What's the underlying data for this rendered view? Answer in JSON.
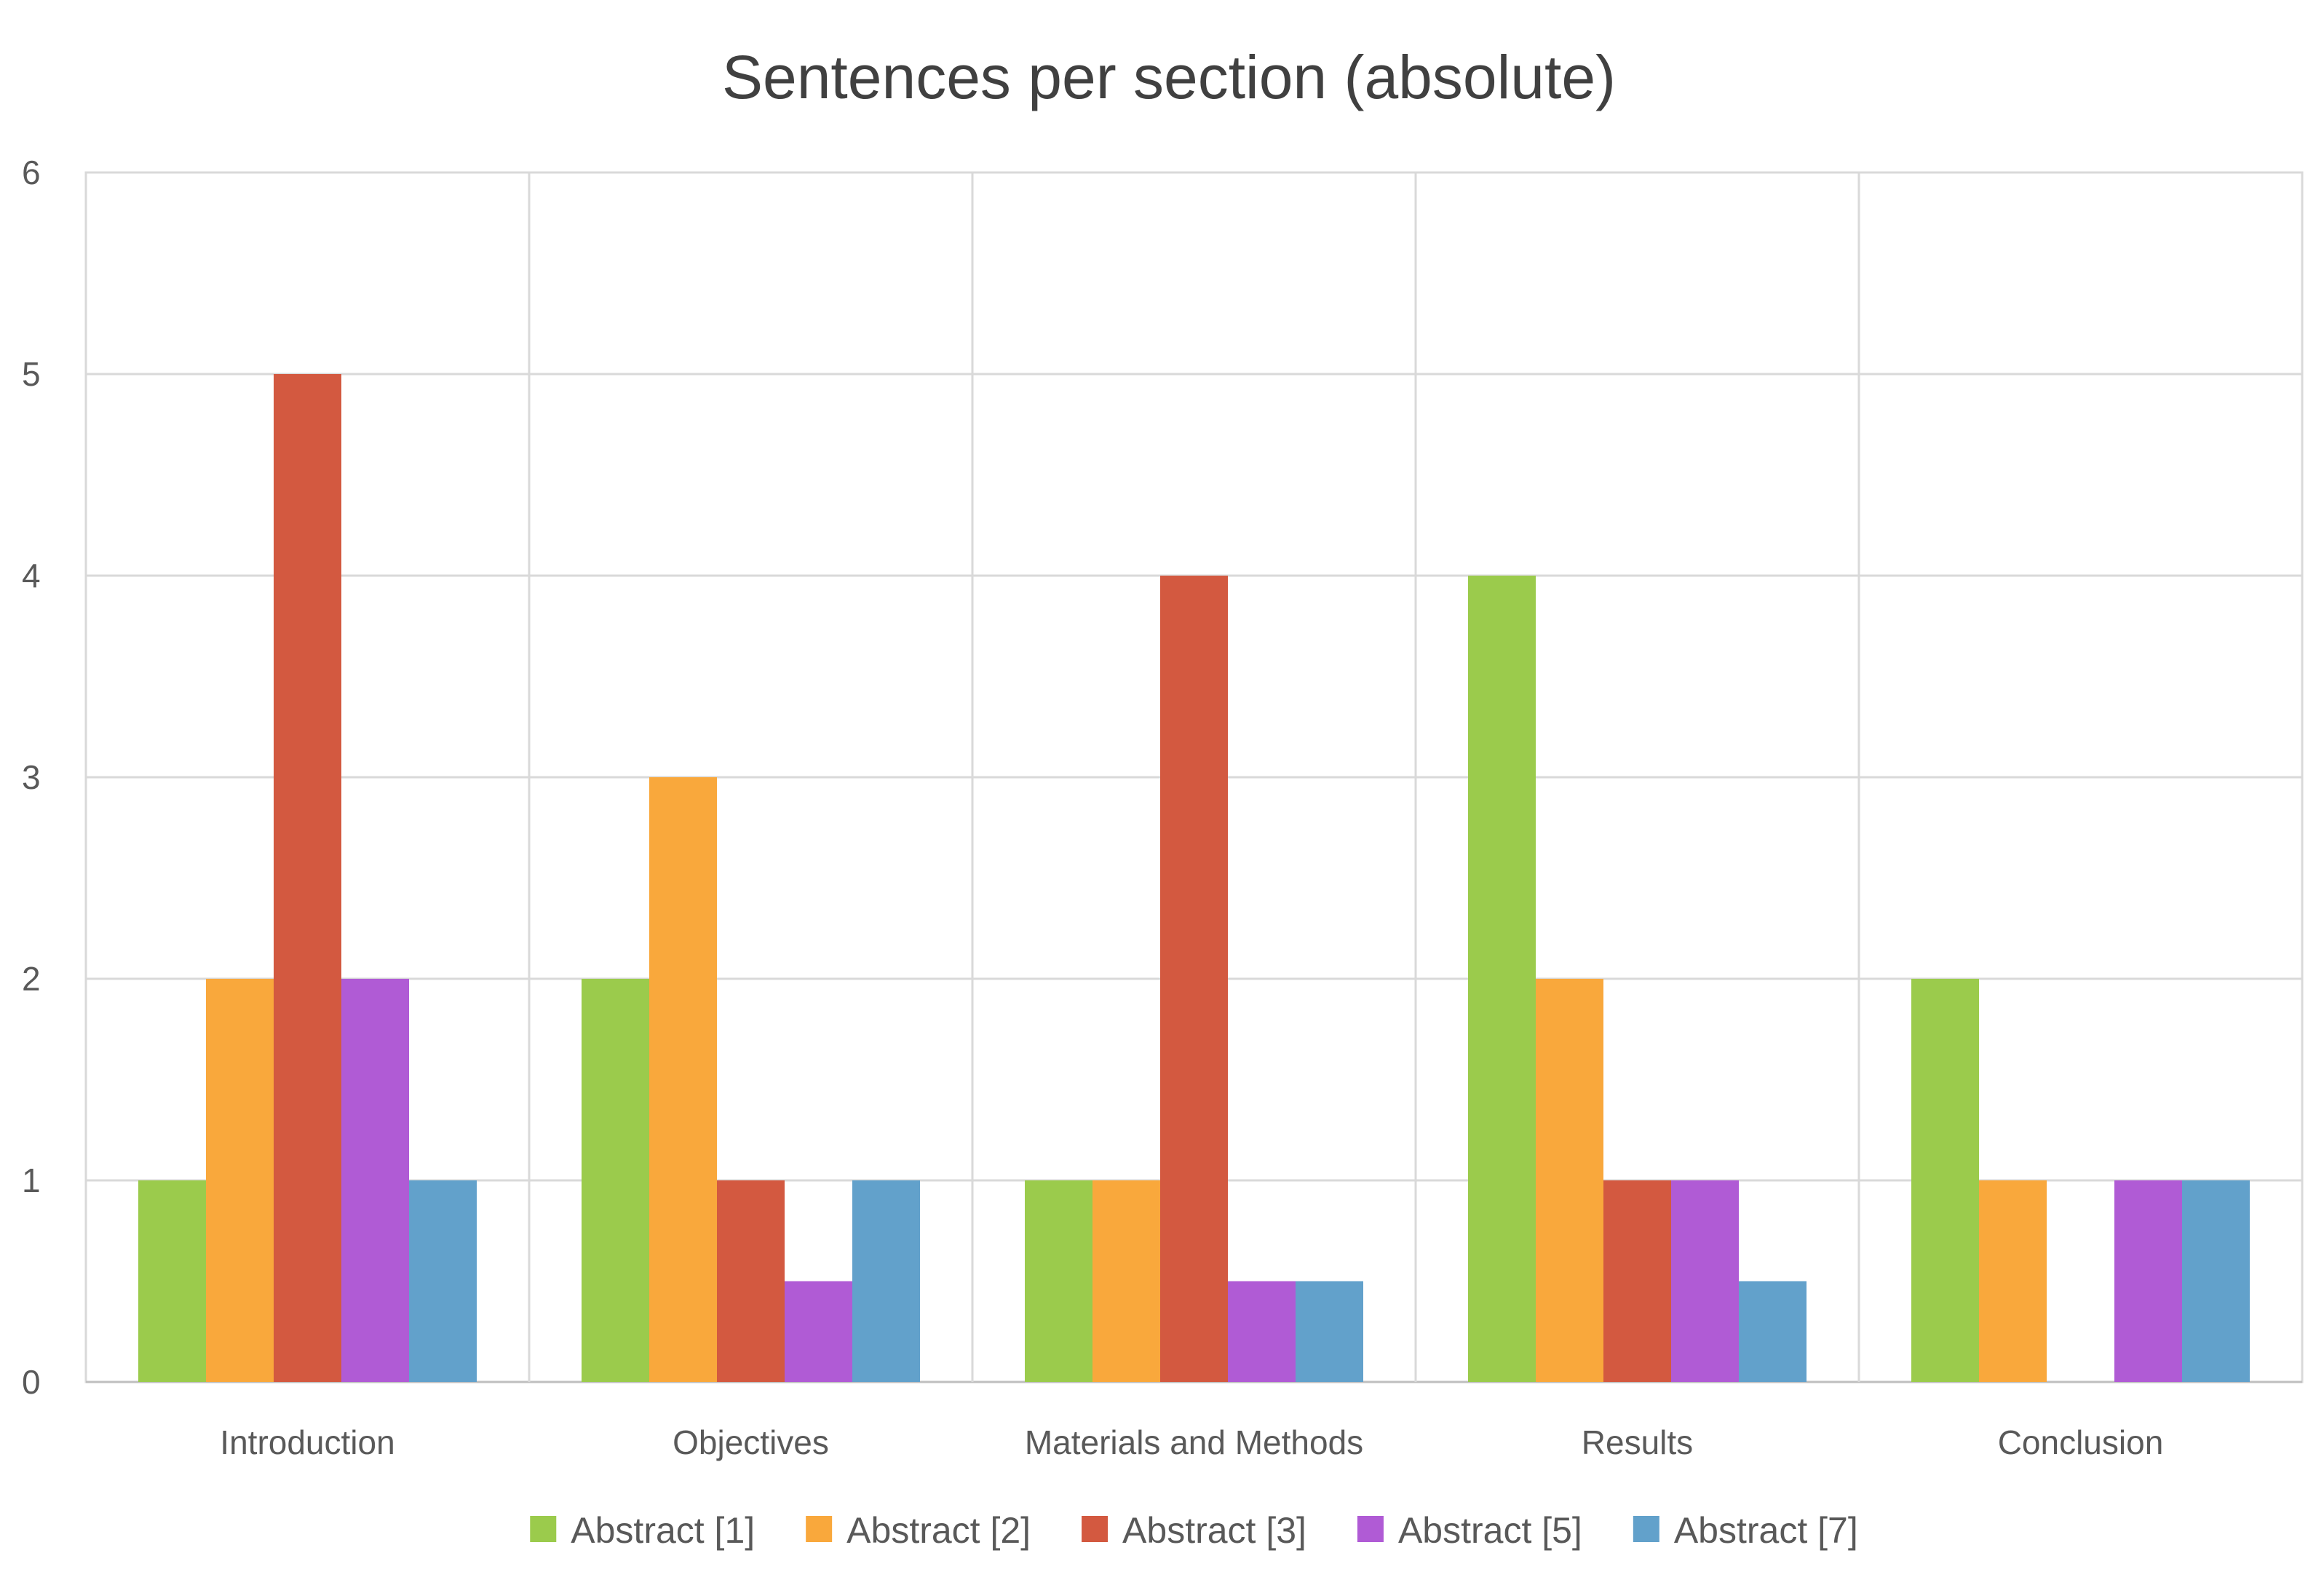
{
  "chart_data": {
    "type": "bar",
    "title": "Sentences per section (absolute)",
    "xlabel": "",
    "ylabel": "",
    "ylim": [
      0,
      6
    ],
    "yticks": [
      0,
      1,
      2,
      3,
      4,
      5,
      6
    ],
    "grid": true,
    "legend_position": "bottom",
    "categories": [
      "Introduction",
      "Objectives",
      "Materials and Methods",
      "Results",
      "Conclusion"
    ],
    "series": [
      {
        "name": "Abstract [1]",
        "color": "#9BCB4C",
        "values": [
          1,
          2,
          1,
          4,
          2
        ]
      },
      {
        "name": "Abstract [2]",
        "color": "#F9A83C",
        "values": [
          2,
          3,
          1,
          2,
          1
        ]
      },
      {
        "name": "Abstract [3]",
        "color": "#D35940",
        "values": [
          5,
          1,
          4,
          1,
          0
        ]
      },
      {
        "name": "Abstract [5]",
        "color": "#B05BD5",
        "values": [
          2,
          0.5,
          0.5,
          1,
          1
        ]
      },
      {
        "name": "Abstract [7]",
        "color": "#62A1CB",
        "values": [
          1,
          1,
          0.5,
          0.5,
          1
        ]
      }
    ]
  }
}
